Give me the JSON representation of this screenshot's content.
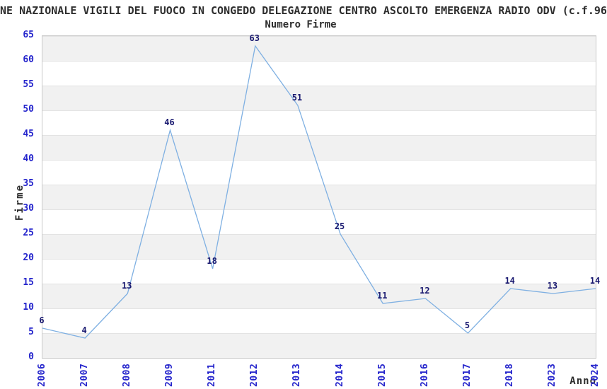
{
  "chart_data": {
    "type": "line",
    "title": "NE NAZIONALE VIGILI DEL FUOCO IN CONGEDO DELEGAZIONE CENTRO ASCOLTO EMERGENZA RADIO ODV (c.f.96",
    "subtitle": "Numero Firme",
    "xlabel": "Anno",
    "ylabel": "Firme",
    "categories": [
      "2006",
      "2007",
      "2008",
      "2009",
      "2011",
      "2012",
      "2013",
      "2014",
      "2015",
      "2016",
      "2017",
      "2018",
      "2023",
      "2024"
    ],
    "values": [
      6,
      4,
      13,
      46,
      18,
      63,
      51,
      25,
      11,
      12,
      5,
      14,
      13,
      14
    ],
    "ylim": [
      0,
      65
    ],
    "ytick_step": 5,
    "grid": "horizontal gridlines with alternating shaded bands every 5 units",
    "legend": "none",
    "point_labels_shown": true,
    "xtick_rotation_degrees": 90,
    "colors": {
      "line": "#7fb0e2",
      "tick_label": "#2525cc",
      "point_label": "#191970",
      "band": "#f1f1f1",
      "gridline": "#e3e3e3",
      "plot_border": "#c9c9c9",
      "text": "#2e2e2e",
      "background": "#ffffff"
    }
  }
}
